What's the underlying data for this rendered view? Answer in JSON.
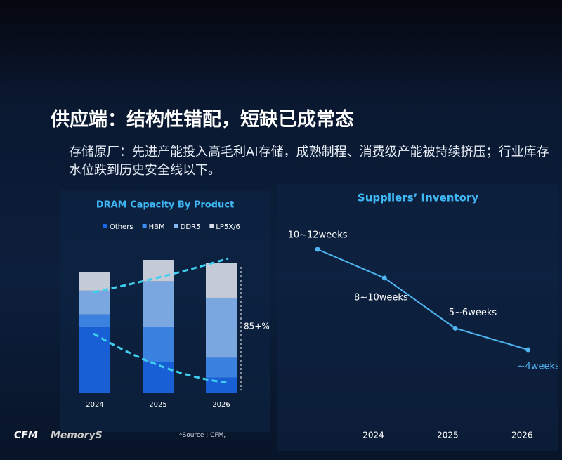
{
  "slide": {
    "title": "供应端：结构性错配，短缺已成常态",
    "body": "存储原厂：先进产能投入高毛利AI存储，成熟制程、消费级产能被持续挤压；行业库存水位跌到历史安全线以下。",
    "source": "*Source : CFM,",
    "logo": "CFM",
    "brand": "MemoryS"
  },
  "chart_data": [
    {
      "type": "stacked-bar",
      "title": "DRAM Capacity By Product",
      "categories": [
        "2024",
        "2025",
        "2026"
      ],
      "series": [
        {
          "name": "Others",
          "color": "#1a66e6",
          "values": [
            84,
            40,
            20
          ]
        },
        {
          "name": "HBM",
          "color": "#3f8cf2",
          "values": [
            16,
            44,
            25
          ]
        },
        {
          "name": "DDR5",
          "color": "#86b6f2",
          "values": [
            30,
            58,
            76
          ]
        },
        {
          "name": "LP5X/6",
          "color": "#d9dde8",
          "values": [
            23,
            27,
            44
          ]
        }
      ],
      "annotation": "85+%"
    },
    {
      "type": "line",
      "title": "Suppilers’ Inventory",
      "color": "#4fb4f0",
      "x": [
        2023.25,
        2024.15,
        2025.1,
        2026.08
      ],
      "values": [
        11,
        9,
        5.5,
        4
      ],
      "value_labels": [
        "10~12weeks",
        "8~10weeks",
        "5~6weeks",
        "~4weeks"
      ],
      "xlim": [
        2022.9,
        2026.3
      ],
      "xticks": [
        2024,
        2025,
        2026
      ]
    }
  ]
}
